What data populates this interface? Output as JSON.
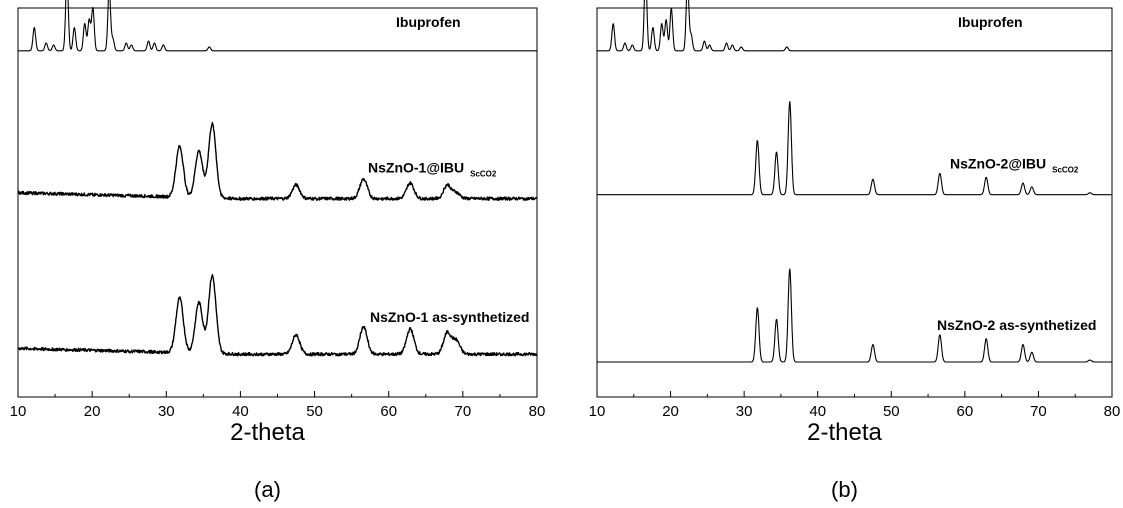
{
  "chart_data": [
    {
      "type": "line",
      "panel_label": "(a)",
      "xlabel": "2-theta",
      "ylabel": "",
      "xlim": [
        10,
        80
      ],
      "x_ticks": [
        "10",
        "20",
        "30",
        "40",
        "50",
        "60",
        "70",
        "80"
      ],
      "y_ticks_labeled": false,
      "series": [
        {
          "name": "Ibuprofen",
          "name_sub": "",
          "baseline": 0.89,
          "noise": 0.0,
          "peaks": [
            [
              12.2,
              0.06
            ],
            [
              13.8,
              0.02
            ],
            [
              14.8,
              0.015
            ],
            [
              16.6,
              0.19
            ],
            [
              17.6,
              0.06
            ],
            [
              19.0,
              0.07
            ],
            [
              19.6,
              0.08
            ],
            [
              20.1,
              0.11
            ],
            [
              22.3,
              0.16
            ],
            [
              22.8,
              0.03
            ],
            [
              24.6,
              0.02
            ],
            [
              25.3,
              0.015
            ],
            [
              27.6,
              0.025
            ],
            [
              28.4,
              0.02
            ],
            [
              29.6,
              0.015
            ],
            [
              35.8,
              0.01
            ]
          ]
        },
        {
          "name": "NsZnO-1@IBU",
          "name_sub": "ScCO2",
          "baseline": 0.51,
          "noise": 0.008,
          "peaks": [
            [
              31.8,
              0.13
            ],
            [
              34.4,
              0.12
            ],
            [
              36.2,
              0.19
            ],
            [
              47.5,
              0.035
            ],
            [
              56.6,
              0.05
            ],
            [
              62.9,
              0.04
            ],
            [
              67.9,
              0.035
            ],
            [
              69.1,
              0.015
            ]
          ]
        },
        {
          "name": "NsZnO-1 as-synthetized",
          "name_sub": "",
          "baseline": 0.11,
          "noise": 0.008,
          "peaks": [
            [
              31.8,
              0.14
            ],
            [
              34.4,
              0.13
            ],
            [
              36.2,
              0.2
            ],
            [
              47.5,
              0.05
            ],
            [
              56.6,
              0.07
            ],
            [
              62.9,
              0.065
            ],
            [
              67.9,
              0.055
            ],
            [
              69.1,
              0.035
            ]
          ]
        }
      ]
    },
    {
      "type": "line",
      "panel_label": "(b)",
      "xlabel": "2-theta",
      "ylabel": "",
      "xlim": [
        10,
        80
      ],
      "x_ticks": [
        "10",
        "20",
        "30",
        "40",
        "50",
        "60",
        "70",
        "80"
      ],
      "y_ticks_labeled": false,
      "series": [
        {
          "name": "Ibuprofen",
          "name_sub": "",
          "baseline": 0.89,
          "noise": 0.0,
          "peaks": [
            [
              12.2,
              0.07
            ],
            [
              13.8,
              0.02
            ],
            [
              14.8,
              0.015
            ],
            [
              16.6,
              0.2
            ],
            [
              17.6,
              0.06
            ],
            [
              18.8,
              0.07
            ],
            [
              19.4,
              0.08
            ],
            [
              20.1,
              0.11
            ],
            [
              22.3,
              0.18
            ],
            [
              22.8,
              0.04
            ],
            [
              24.6,
              0.025
            ],
            [
              25.3,
              0.015
            ],
            [
              27.6,
              0.02
            ],
            [
              28.4,
              0.015
            ],
            [
              29.6,
              0.01
            ],
            [
              35.8,
              0.01
            ]
          ]
        },
        {
          "name": "NsZnO-2@IBU",
          "name_sub": "ScCO2",
          "baseline": 0.52,
          "noise": 0.0,
          "peaks": [
            [
              31.8,
              0.14
            ],
            [
              34.4,
              0.11
            ],
            [
              36.2,
              0.24
            ],
            [
              47.5,
              0.04
            ],
            [
              56.6,
              0.055
            ],
            [
              62.9,
              0.045
            ],
            [
              67.9,
              0.03
            ],
            [
              69.1,
              0.02
            ],
            [
              77.0,
              0.005
            ]
          ]
        },
        {
          "name": "NsZnO-2 as-synthetized",
          "name_sub": "",
          "baseline": 0.09,
          "noise": 0.0,
          "peaks": [
            [
              31.8,
              0.14
            ],
            [
              34.4,
              0.11
            ],
            [
              36.2,
              0.24
            ],
            [
              47.5,
              0.045
            ],
            [
              56.6,
              0.07
            ],
            [
              62.9,
              0.06
            ],
            [
              67.9,
              0.045
            ],
            [
              69.1,
              0.025
            ],
            [
              77.0,
              0.005
            ]
          ]
        }
      ]
    }
  ]
}
